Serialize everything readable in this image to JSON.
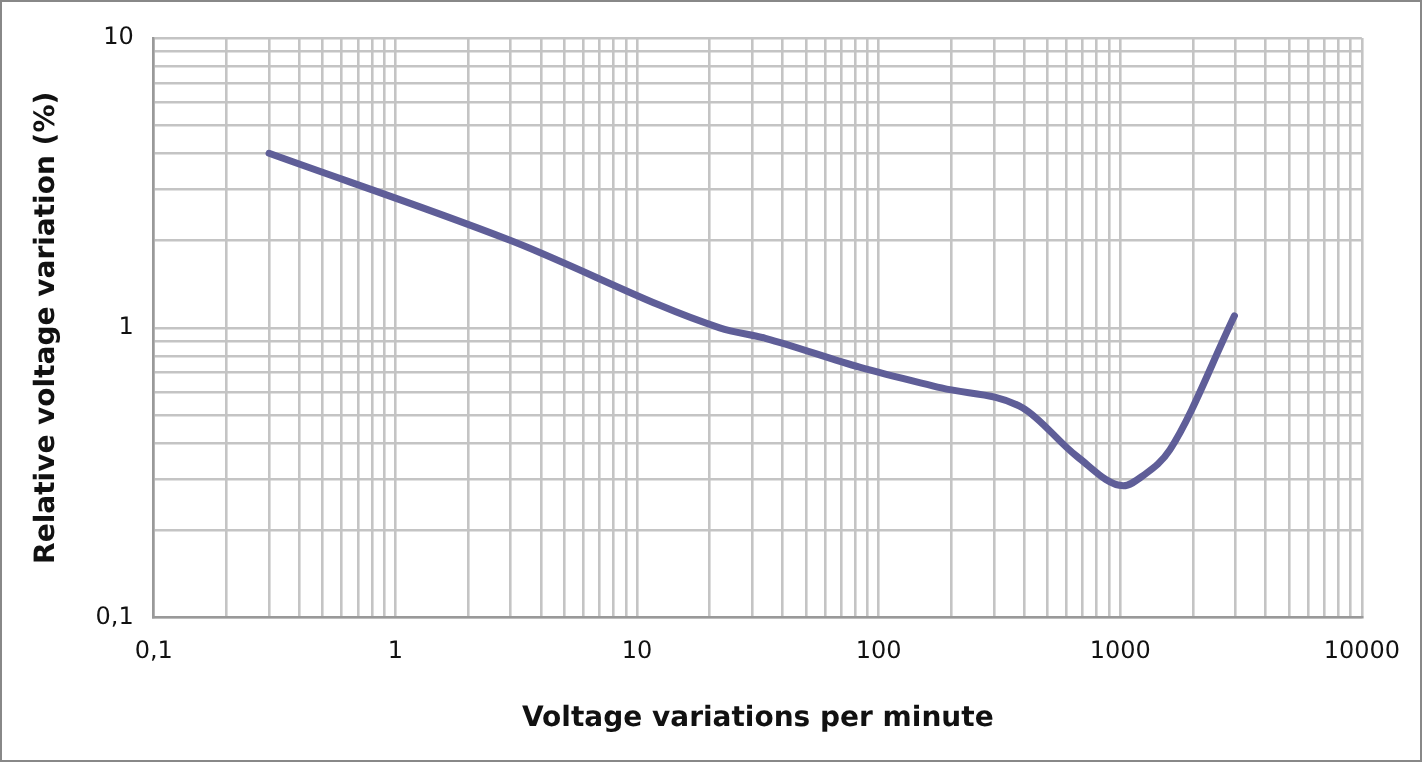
{
  "chart_data": {
    "type": "line",
    "xlabel": "Voltage variations per minute",
    "ylabel": "Relative voltage variation (%)",
    "series": [
      {
        "color": "#5f5e98",
        "x": [
          0.3,
          3,
          22,
          34,
          84,
          182,
          394,
          662,
          1030,
          1250,
          1607,
          2970
        ],
        "values": [
          4,
          2,
          1.0,
          0.92,
          0.73,
          0.62,
          0.53,
          0.36,
          0.285,
          0.31,
          0.38,
          1.1
        ]
      }
    ],
    "log": "xy",
    "xlim": [
      0.1,
      10000
    ],
    "ylim": [
      0.1,
      10
    ],
    "xticks": [
      {
        "value": 0.1,
        "label": "0,1"
      },
      {
        "value": 0.2,
        "label": null
      },
      {
        "value": 0.3,
        "label": null
      },
      {
        "value": 0.4,
        "label": null
      },
      {
        "value": 0.5,
        "label": null
      },
      {
        "value": 0.6,
        "label": null
      },
      {
        "value": 0.7,
        "label": null
      },
      {
        "value": 0.8,
        "label": null
      },
      {
        "value": 0.9,
        "label": null
      },
      1,
      {
        "value": 2,
        "label": null
      },
      {
        "value": 3,
        "label": null
      },
      {
        "value": 4,
        "label": null
      },
      {
        "value": 5,
        "label": null
      },
      {
        "value": 6,
        "label": null
      },
      {
        "value": 7,
        "label": null
      },
      {
        "value": 8,
        "label": null
      },
      {
        "value": 9,
        "label": null
      },
      10,
      {
        "value": 20,
        "label": null
      },
      {
        "value": 30,
        "label": null
      },
      {
        "value": 40,
        "label": null
      },
      {
        "value": 50,
        "label": null
      },
      {
        "value": 60,
        "label": null
      },
      {
        "value": 70,
        "label": null
      },
      {
        "value": 80,
        "label": null
      },
      {
        "value": 90,
        "label": null
      },
      100,
      {
        "value": 200,
        "label": null
      },
      {
        "value": 300,
        "label": null
      },
      {
        "value": 400,
        "label": null
      },
      {
        "value": 500,
        "label": null
      },
      {
        "value": 600,
        "label": null
      },
      {
        "value": 700,
        "label": null
      },
      {
        "value": 800,
        "label": null
      },
      {
        "value": 900,
        "label": null
      },
      1000,
      {
        "value": 2000,
        "label": null
      },
      {
        "value": 3000,
        "label": null
      },
      {
        "value": 4000,
        "label": null
      },
      {
        "value": 5000,
        "label": null
      },
      {
        "value": 6000,
        "label": null
      },
      {
        "value": 7000,
        "label": null
      },
      {
        "value": 8000,
        "label": null
      },
      {
        "value": 9000,
        "label": null
      },
      10000
    ],
    "yticks": [
      {
        "value": 0.1,
        "label": "0,1"
      },
      {
        "value": 0.2,
        "label": null
      },
      {
        "value": 0.3,
        "label": null
      },
      {
        "value": 0.4,
        "label": null
      },
      {
        "value": 0.5,
        "label": null
      },
      {
        "value": 0.6,
        "label": null
      },
      {
        "value": 0.7,
        "label": null
      },
      {
        "value": 0.8,
        "label": null
      },
      {
        "value": 0.9,
        "label": null
      },
      1,
      {
        "value": 2,
        "label": null
      },
      {
        "value": 3,
        "label": null
      },
      {
        "value": 4,
        "label": null
      },
      {
        "value": 5,
        "label": null
      },
      {
        "value": 6,
        "label": null
      },
      {
        "value": 7,
        "label": null
      },
      {
        "value": 8,
        "label": null
      },
      {
        "value": 9,
        "label": null
      },
      10
    ],
    "grid": true,
    "legend": false,
    "marker": "none",
    "line_style": "solid"
  }
}
